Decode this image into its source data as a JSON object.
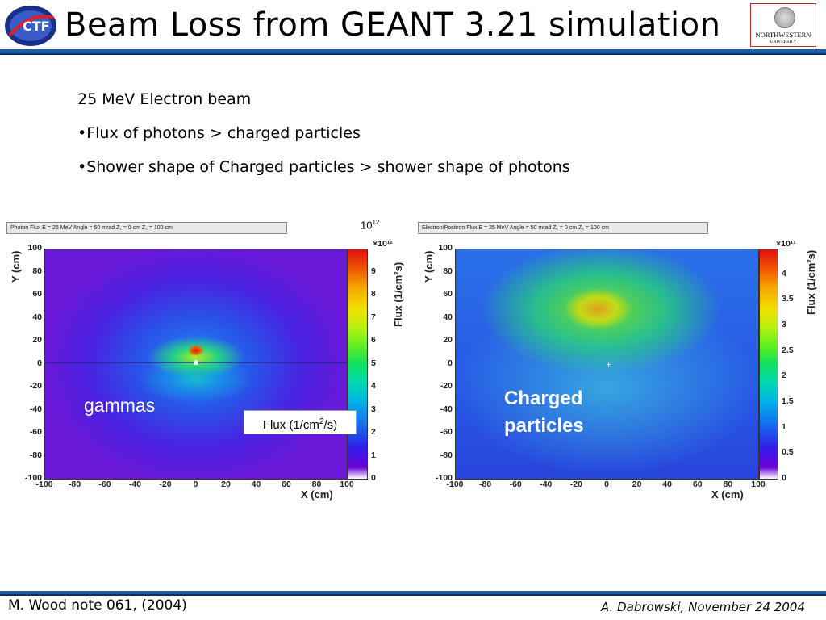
{
  "header": {
    "title": "Beam Loss from GEANT 3.21 simulation",
    "left_logo_text": "CTF",
    "right_logo": {
      "name": "NORTHWESTERN",
      "sub": "UNIVERSITY"
    }
  },
  "bullets": [
    "25 MeV Electron beam",
    "•Flux of photons > charged particles",
    "•Shower shape of Charged particles > shower shape of photons"
  ],
  "plots": {
    "photon": {
      "title": "Photon Flux E =   25 MeV   Angle = 50 mrad   Z₁ =    0 cm Z₂ =  100 cm",
      "ylabel": "Y (cm)",
      "xlabel": "X (cm)",
      "zlabel": "Flux (1/cm²s)",
      "x_ticks": [
        "-100",
        "-80",
        "-60",
        "-40",
        "-20",
        "0",
        "20",
        "40",
        "60",
        "80",
        "100"
      ],
      "y_ticks": [
        "100",
        "80",
        "60",
        "40",
        "20",
        "0",
        "-20",
        "-40",
        "-60",
        "-80",
        "-100"
      ],
      "z_ticks": [
        "9",
        "8",
        "7",
        "6",
        "5",
        "4",
        "3",
        "2",
        "1",
        "0"
      ],
      "z_max": 10,
      "z_multiplier": "×10¹²",
      "overlay_label": "gammas"
    },
    "charged": {
      "title": "Electron/Positron Flux E =   25 MeV   Angle = 50 mrad   Z₁ =    0 cm Z₂ =  100 cm",
      "ylabel": "Y (cm)",
      "xlabel": "X (cm)",
      "zlabel": "Flux (1/cm²s)",
      "x_ticks": [
        "-100",
        "-80",
        "-60",
        "-40",
        "-20",
        "0",
        "20",
        "40",
        "60",
        "80",
        "100"
      ],
      "y_ticks": [
        "100",
        "80",
        "60",
        "40",
        "20",
        "0",
        "-20",
        "-40",
        "-60",
        "-80",
        "-100"
      ],
      "z_ticks": [
        "4",
        "3.5",
        "3",
        "2.5",
        "2",
        "1.5",
        "1",
        "0.5",
        "0"
      ],
      "z_max": 4.5,
      "z_multiplier": "×10¹¹",
      "overlay_label_1": "Charged",
      "overlay_label_2": "particles"
    }
  },
  "annotations": {
    "exponent_base": "10",
    "exponent_power": "12",
    "flux_base": "Flux (1/cm",
    "flux_sup": "2",
    "flux_end": "/s)"
  },
  "footer": {
    "left": "M. Wood note 061, (2004)",
    "right": "A. Dabrowski, November 24 2004"
  },
  "colors": {
    "header_bar": "#1a5fa6",
    "header_bar_dark": "#0c2f63"
  }
}
